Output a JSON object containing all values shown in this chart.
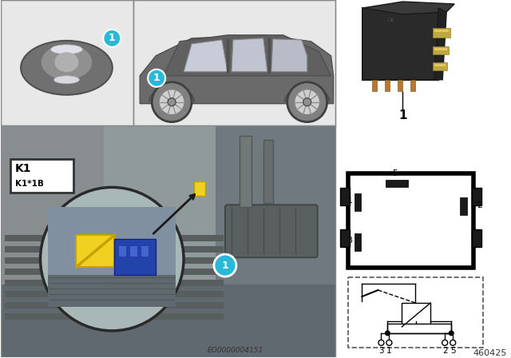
{
  "bg_color": "#ffffff",
  "teal_color": "#29b8d8",
  "k1_label": "K1",
  "k1b_label": "K1*1B",
  "part_number": "EO0000004151",
  "ref_number": "460425",
  "top_panel_bg": "#e8e8e8",
  "trunk_bg": "#909898",
  "trunk_dark": "#6a7070",
  "trunk_floor": "#585e5e",
  "mag_circle_color": "#aab8b8",
  "relay_body_color": "#3a3a3a",
  "relay_pin_color": "#c8b060",
  "yellow_relay": "#f0d020",
  "blue_connector": "#2244aa"
}
